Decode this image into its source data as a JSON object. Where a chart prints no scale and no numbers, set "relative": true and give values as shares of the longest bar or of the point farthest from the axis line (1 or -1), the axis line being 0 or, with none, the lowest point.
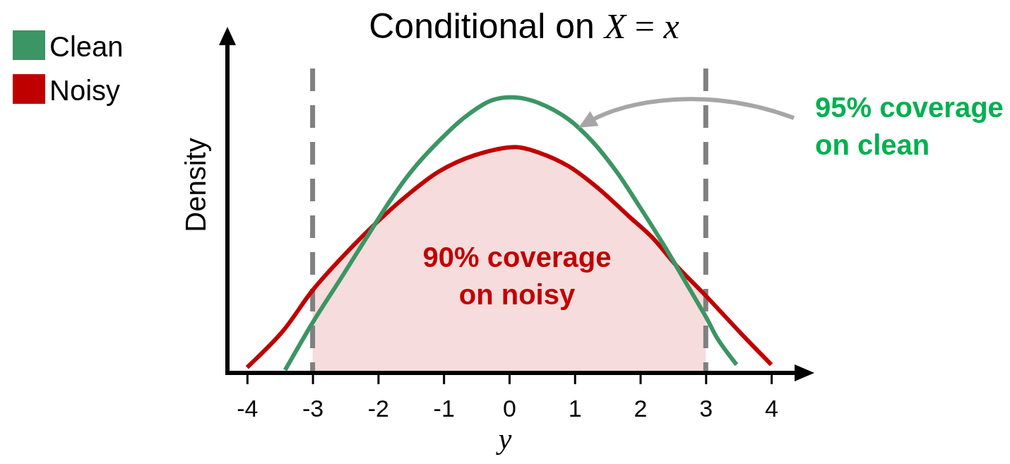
{
  "chart_data": {
    "type": "line",
    "title": "Conditional on X = x",
    "xlabel": "y",
    "ylabel": "Density",
    "relative": true,
    "xlim": [
      -4.3,
      4.56
    ],
    "xticks": [
      -4,
      -3,
      -2,
      -1,
      0,
      1,
      2,
      3,
      4
    ],
    "series": [
      {
        "type": "area",
        "color": "#f6dcdc",
        "x": [
          -3,
          -2.55,
          -2.18,
          -1.63,
          -1.08,
          -0.53,
          0.1,
          0.45,
          0.91,
          1.36,
          1.82,
          2.19,
          2.55,
          3
        ],
        "values": [
          0.3,
          0.42,
          0.51,
          0.63,
          0.73,
          0.79,
          0.82,
          0.8,
          0.75,
          0.67,
          0.57,
          0.49,
          0.39,
          0.28
        ]
      },
      {
        "name": "Clean",
        "color": "#3c9564",
        "x": [
          -3.42,
          -2.98,
          -2.55,
          -2.18,
          -1.86,
          -1.5,
          -1.08,
          -0.67,
          -0.26,
          0.1,
          0.45,
          0.91,
          1.27,
          1.64,
          2,
          2.37,
          2.74,
          3.01,
          3.19,
          3.47
        ],
        "values": [
          0.01,
          0.19,
          0.35,
          0.49,
          0.61,
          0.73,
          0.84,
          0.93,
          0.99,
          1,
          0.98,
          0.92,
          0.84,
          0.73,
          0.6,
          0.46,
          0.31,
          0.2,
          0.12,
          0.03
        ]
      },
      {
        "name": "Noisy",
        "color": "#c00000",
        "x": [
          -4,
          -3.46,
          -3,
          -2.55,
          -2.18,
          -1.63,
          -1.08,
          -0.53,
          0.1,
          0.45,
          0.91,
          1.36,
          1.82,
          2.19,
          2.55,
          3,
          3.55,
          4
        ],
        "values": [
          0.02,
          0.15,
          0.3,
          0.42,
          0.51,
          0.63,
          0.73,
          0.79,
          0.82,
          0.8,
          0.75,
          0.67,
          0.57,
          0.49,
          0.39,
          0.28,
          0.14,
          0.03
        ]
      }
    ],
    "ref_lines": [
      {
        "axis": "x",
        "value": -3,
        "color": "#808080",
        "line_style": "dashed"
      },
      {
        "axis": "x",
        "value": 3,
        "color": "#808080",
        "line_style": "dashed"
      }
    ],
    "annotations": [
      "95% coverage on clean",
      "90% coverage on noisy"
    ],
    "legend": "top left"
  }
}
